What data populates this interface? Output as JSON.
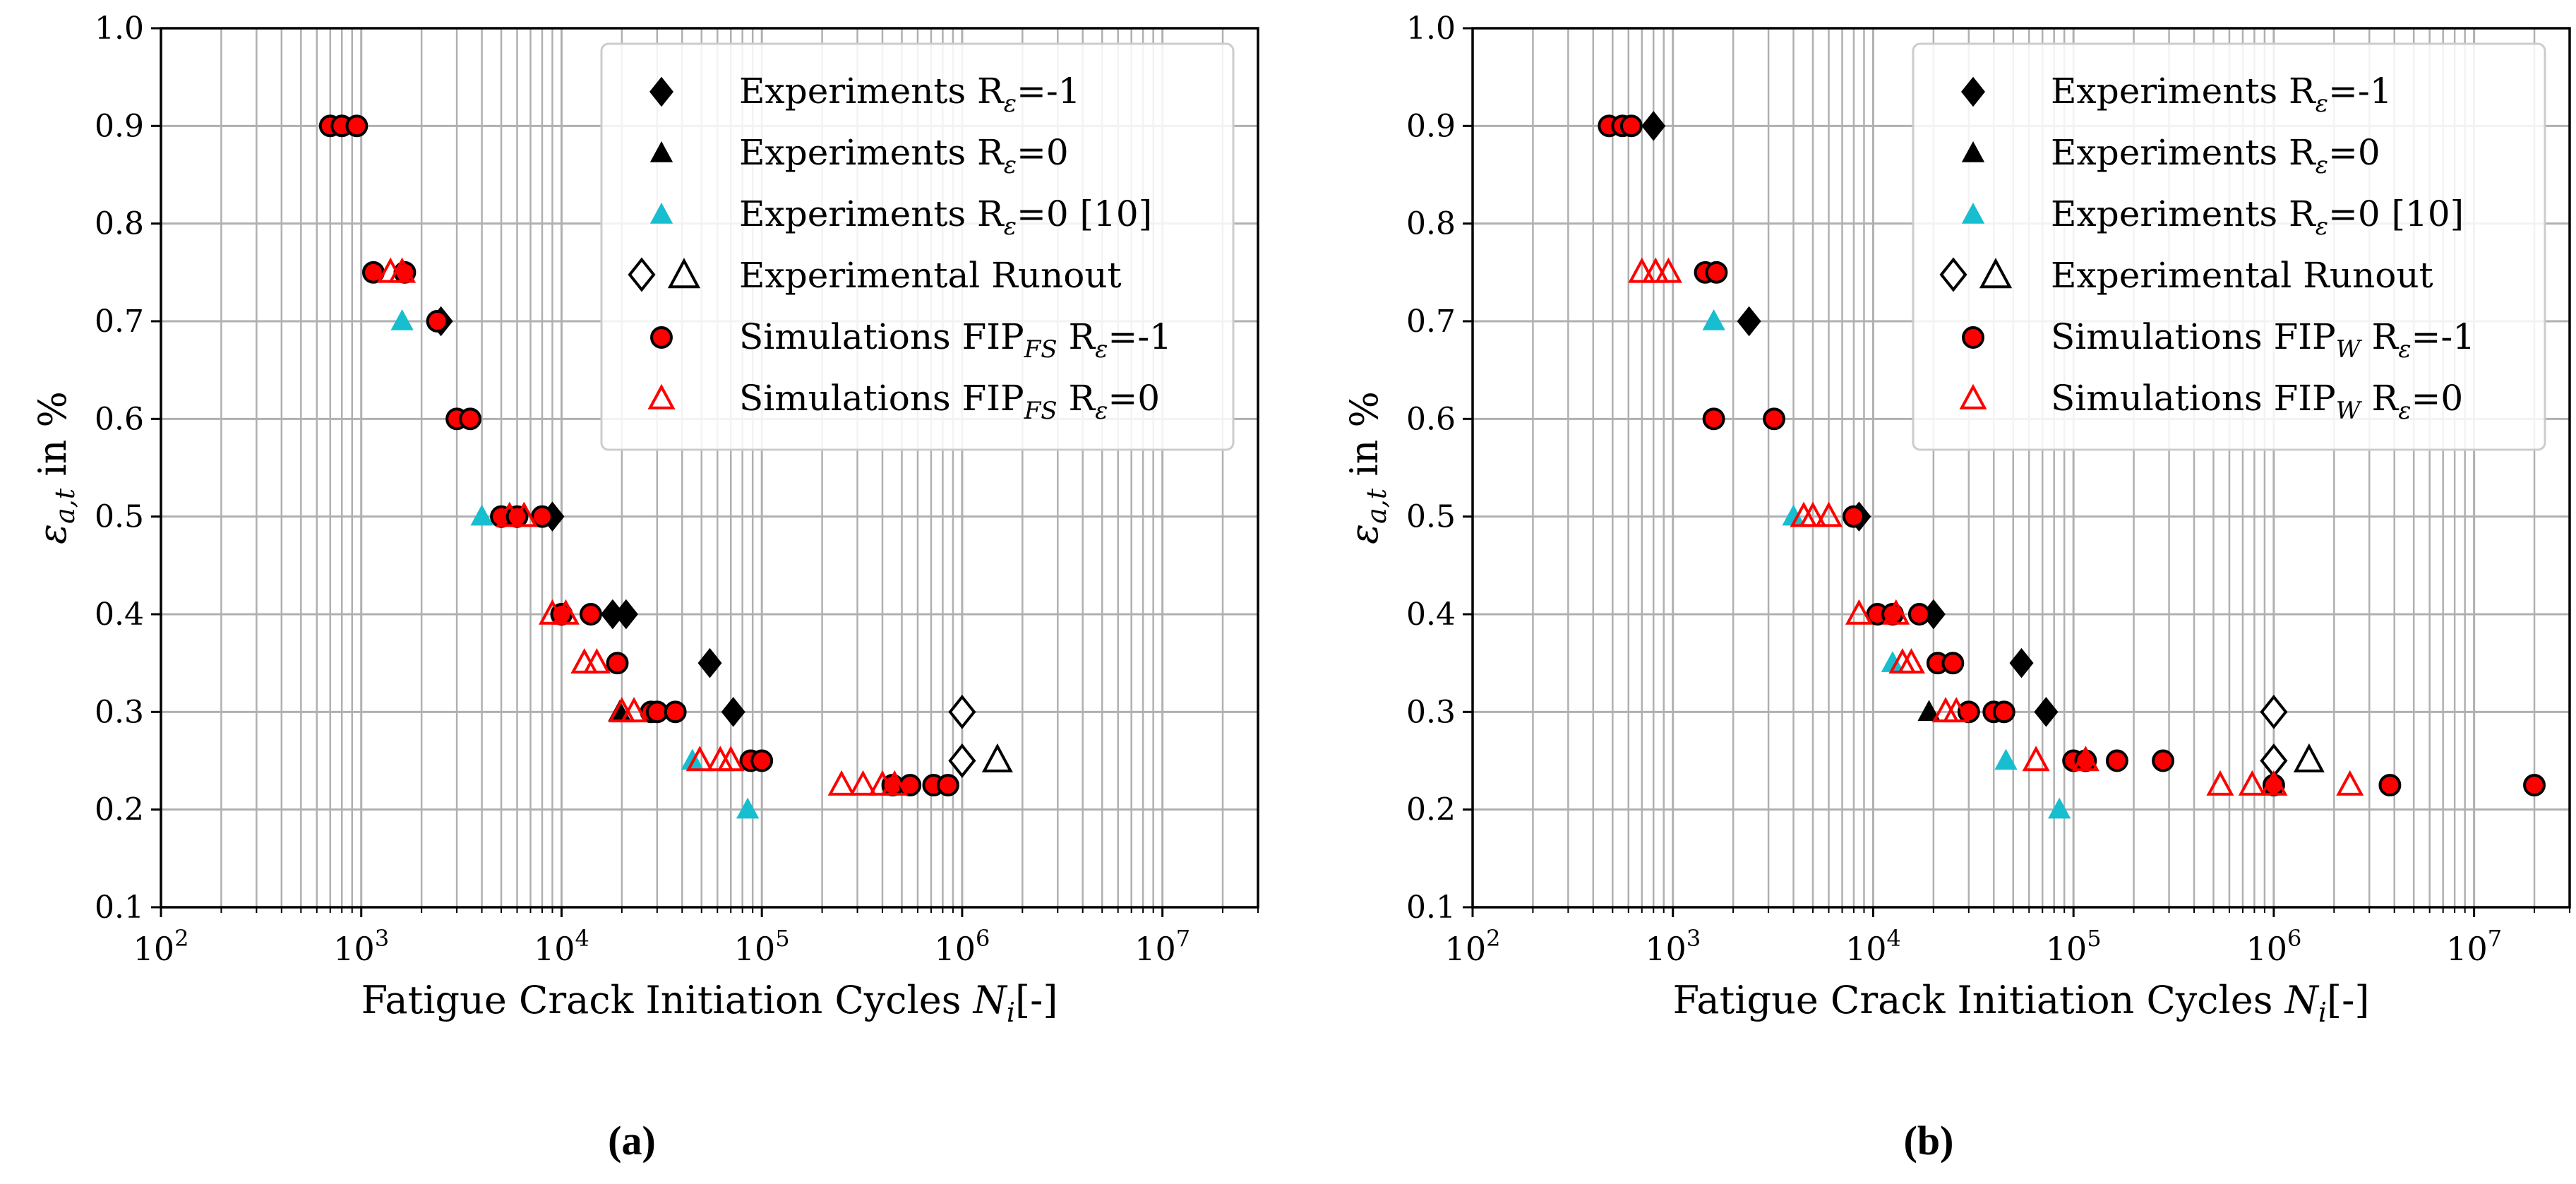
{
  "styles": {
    "exp_color": "#000000",
    "cyan_color": "#17becf",
    "sim_fill": "#ff0000",
    "sim_edge": "#000000",
    "sim_tri_color": "#ff0000",
    "grid_color": "#b0b0b0"
  },
  "panel_labels": {
    "a": "(a)",
    "b": "(b)"
  },
  "chart_data": [
    {
      "type": "scatter",
      "panel": "(a)",
      "xscale": "log",
      "xlim": [
        100,
        30000000
      ],
      "ylim": [
        0.1,
        1.0
      ],
      "ylabel": "ε_a,t in %",
      "xlabel": "Fatigue Crack Initiation Cycles N_i[-]",
      "xticks": [
        {
          "base": "10",
          "exp": "2"
        },
        {
          "base": "10",
          "exp": "3"
        },
        {
          "base": "10",
          "exp": "4"
        },
        {
          "base": "10",
          "exp": "5"
        },
        {
          "base": "10",
          "exp": "6"
        },
        {
          "base": "10",
          "exp": "7"
        }
      ],
      "yticks": [
        "0.1",
        "0.2",
        "0.3",
        "0.4",
        "0.5",
        "0.6",
        "0.7",
        "0.8",
        "0.9",
        "1.0"
      ],
      "legend": {
        "position": "top-right",
        "entries": [
          {
            "label": "Experiments R",
            "sub": "ε",
            "suffix": "=-1",
            "marker": "diamond"
          },
          {
            "label": "Experiments R",
            "sub": "ε",
            "suffix": "=0",
            "marker": "triangle"
          },
          {
            "label": "Experiments R",
            "sub": "ε",
            "suffix": "=0 [10]",
            "marker": "triangle-cyan"
          },
          {
            "label": "Experimental Runout",
            "sub": "",
            "suffix": "",
            "marker": "runout"
          },
          {
            "label": "Simulations FIP",
            "sub2": "FS",
            "mid": " R",
            "sub": "ε",
            "suffix": "=-1",
            "marker": "circle"
          },
          {
            "label": "Simulations FIP",
            "sub2": "FS",
            "mid": " R",
            "sub": "ε",
            "suffix": "=0",
            "marker": "open-triangle"
          }
        ]
      },
      "series": [
        {
          "name": "Experiments Rε=-1",
          "marker": "diamond",
          "x": [
            2500,
            9000,
            18000,
            21000,
            55000,
            72000
          ],
          "y": [
            0.7,
            0.5,
            0.4,
            0.4,
            0.35,
            0.3
          ]
        },
        {
          "name": "Experiments Rε=0",
          "marker": "triangle",
          "x": [
            19500
          ],
          "y": [
            0.3
          ]
        },
        {
          "name": "Experiments Rε=0 [10]",
          "marker": "triangle-cyan",
          "x": [
            1600,
            4000,
            45000,
            85000
          ],
          "y": [
            0.7,
            0.5,
            0.25,
            0.2
          ]
        },
        {
          "name": "Experimental Runout (diamond)",
          "marker": "open-diamond",
          "x": [
            1000000,
            1000000
          ],
          "y": [
            0.3,
            0.25
          ]
        },
        {
          "name": "Experimental Runout (triangle)",
          "marker": "open-triangle-black",
          "x": [
            1500000
          ],
          "y": [
            0.25
          ]
        },
        {
          "name": "Simulations FIP_FS Rε=-1",
          "marker": "circle",
          "x": [
            700,
            800,
            950,
            1150,
            1650,
            2400,
            3000,
            3500,
            5000,
            6000,
            8000,
            10000,
            14000,
            19000,
            28000,
            30000,
            37000,
            88000,
            100000,
            450000,
            550000,
            720000,
            850000
          ],
          "y": [
            0.9,
            0.9,
            0.9,
            0.75,
            0.75,
            0.7,
            0.6,
            0.6,
            0.5,
            0.5,
            0.5,
            0.4,
            0.4,
            0.35,
            0.3,
            0.3,
            0.3,
            0.25,
            0.25,
            0.225,
            0.225,
            0.225,
            0.225
          ]
        },
        {
          "name": "Simulations FIP_FS Rε=0",
          "marker": "open-triangle",
          "x": [
            1400,
            1600,
            5500,
            6500,
            9000,
            10500,
            13000,
            15000,
            20000,
            23000,
            49000,
            62000,
            70000,
            250000,
            320000,
            400000,
            460000
          ],
          "y": [
            0.75,
            0.75,
            0.5,
            0.5,
            0.4,
            0.4,
            0.35,
            0.35,
            0.3,
            0.3,
            0.25,
            0.25,
            0.25,
            0.225,
            0.225,
            0.225,
            0.225
          ]
        }
      ]
    },
    {
      "type": "scatter",
      "panel": "(b)",
      "xscale": "log",
      "xlim": [
        100,
        30000000
      ],
      "ylim": [
        0.1,
        1.0
      ],
      "ylabel": "ε_a,t in %",
      "xlabel": "Fatigue Crack Initiation Cycles N_i[-]",
      "xticks": [
        {
          "base": "10",
          "exp": "2"
        },
        {
          "base": "10",
          "exp": "3"
        },
        {
          "base": "10",
          "exp": "4"
        },
        {
          "base": "10",
          "exp": "5"
        },
        {
          "base": "10",
          "exp": "6"
        },
        {
          "base": "10",
          "exp": "7"
        }
      ],
      "yticks": [
        "0.1",
        "0.2",
        "0.3",
        "0.4",
        "0.5",
        "0.6",
        "0.7",
        "0.8",
        "0.9",
        "1.0"
      ],
      "legend": {
        "position": "top-right",
        "entries": [
          {
            "label": "Experiments R",
            "sub": "ε",
            "suffix": "=-1",
            "marker": "diamond"
          },
          {
            "label": "Experiments R",
            "sub": "ε",
            "suffix": "=0",
            "marker": "triangle"
          },
          {
            "label": "Experiments R",
            "sub": "ε",
            "suffix": "=0 [10]",
            "marker": "triangle-cyan"
          },
          {
            "label": "Experimental Runout",
            "sub": "",
            "suffix": "",
            "marker": "runout"
          },
          {
            "label": "Simulations FIP",
            "sub2": "W",
            "mid": " R",
            "sub": "ε",
            "suffix": "=-1",
            "marker": "circle"
          },
          {
            "label": "Simulations FIP",
            "sub2": "W",
            "mid": " R",
            "sub": "ε",
            "suffix": "=0",
            "marker": "open-triangle"
          }
        ]
      },
      "series": [
        {
          "name": "Experiments Rε=-1",
          "marker": "diamond",
          "x": [
            800,
            2400,
            8500,
            20000,
            55000,
            73000
          ],
          "y": [
            0.9,
            0.7,
            0.5,
            0.4,
            0.35,
            0.3
          ]
        },
        {
          "name": "Experiments Rε=0",
          "marker": "triangle",
          "x": [
            19000
          ],
          "y": [
            0.3
          ]
        },
        {
          "name": "Experiments Rε=0 [10]",
          "marker": "triangle-cyan",
          "x": [
            1600,
            4000,
            12500,
            46000,
            85000
          ],
          "y": [
            0.7,
            0.5,
            0.35,
            0.25,
            0.2
          ]
        },
        {
          "name": "Experimental Runout (diamond)",
          "marker": "open-diamond",
          "x": [
            1000000,
            1000000
          ],
          "y": [
            0.3,
            0.25
          ]
        },
        {
          "name": "Experimental Runout (triangle)",
          "marker": "open-triangle-black",
          "x": [
            1500000
          ],
          "y": [
            0.25
          ]
        },
        {
          "name": "Simulations FIP_W Rε=-1",
          "marker": "circle",
          "x": [
            480,
            560,
            620,
            1450,
            1650,
            1600,
            3200,
            8000,
            10500,
            12500,
            17000,
            21000,
            25000,
            30000,
            40000,
            45000,
            100000,
            115000,
            165000,
            280000,
            1000000,
            3800000,
            20000000
          ],
          "y": [
            0.9,
            0.9,
            0.9,
            0.75,
            0.75,
            0.6,
            0.6,
            0.5,
            0.4,
            0.4,
            0.4,
            0.35,
            0.35,
            0.3,
            0.3,
            0.3,
            0.25,
            0.25,
            0.25,
            0.25,
            0.225,
            0.225,
            0.225
          ]
        },
        {
          "name": "Simulations FIP_W Rε=0",
          "marker": "open-triangle",
          "x": [
            700,
            820,
            950,
            4500,
            5000,
            6000,
            8500,
            13000,
            14000,
            15500,
            23000,
            26000,
            65000,
            115000,
            540000,
            780000,
            1000000,
            2400000
          ],
          "y": [
            0.75,
            0.75,
            0.75,
            0.5,
            0.5,
            0.5,
            0.4,
            0.4,
            0.35,
            0.35,
            0.3,
            0.3,
            0.25,
            0.25,
            0.225,
            0.225,
            0.225,
            0.225
          ]
        }
      ]
    }
  ]
}
